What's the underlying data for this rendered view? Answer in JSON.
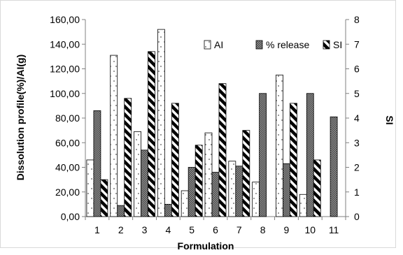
{
  "chart_data": {
    "type": "bar",
    "xlabel": "Formulation",
    "ylabel_left": "Dissolution profile(%)/AI(g)",
    "ylabel_right": "SI",
    "categories": [
      "1",
      "2",
      "3",
      "4",
      "5",
      "6",
      "7",
      "8",
      "9",
      "10",
      "11"
    ],
    "ylim_left": [
      0,
      160
    ],
    "yticks_left": [
      "0,00",
      "20,00",
      "40,00",
      "60,00",
      "80,00",
      "100,00",
      "120,00",
      "140,00",
      "160,00"
    ],
    "ylim_right": [
      0,
      8
    ],
    "yticks_right": [
      "0",
      "1",
      "2",
      "3",
      "4",
      "5",
      "6",
      "7",
      "8"
    ],
    "grid": false,
    "legend_position": "top-right",
    "series": [
      {
        "name": "AI",
        "axis": "left",
        "pattern": "dots",
        "values": [
          46,
          131,
          69,
          152,
          21,
          68,
          45,
          28,
          115,
          18,
          0
        ]
      },
      {
        "name": "% release",
        "axis": "left",
        "pattern": "crosshatch",
        "values": [
          86,
          9,
          54,
          10,
          40,
          36,
          41,
          100,
          43,
          100,
          81
        ]
      },
      {
        "name": "SI",
        "axis": "right",
        "pattern": "diagonal",
        "values": [
          1.5,
          4.8,
          6.7,
          4.6,
          2.9,
          5.4,
          3.5,
          0,
          4.6,
          2.3,
          0
        ]
      }
    ]
  }
}
